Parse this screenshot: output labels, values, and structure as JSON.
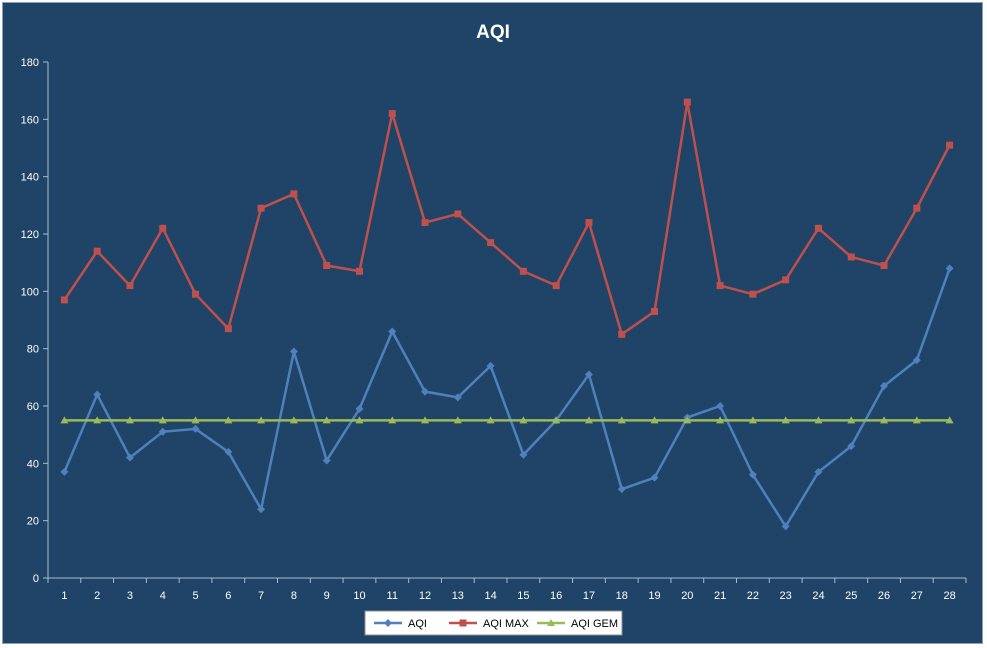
{
  "chart_data": {
    "type": "line",
    "title": "AQI",
    "xlabel": "",
    "ylabel": "",
    "categories": [
      "1",
      "2",
      "3",
      "4",
      "5",
      "6",
      "7",
      "8",
      "9",
      "10",
      "11",
      "12",
      "13",
      "14",
      "15",
      "16",
      "17",
      "18",
      "19",
      "20",
      "21",
      "22",
      "23",
      "24",
      "25",
      "26",
      "27",
      "28"
    ],
    "ylim": [
      0,
      180
    ],
    "yticks": [
      0,
      20,
      40,
      60,
      80,
      100,
      120,
      140,
      160,
      180
    ],
    "grid": false,
    "legend_position": "bottom",
    "series": [
      {
        "name": "AQI",
        "color": "#4f81bd",
        "marker": "diamond",
        "values": [
          37,
          64,
          42,
          51,
          52,
          44,
          24,
          79,
          41,
          59,
          86,
          65,
          63,
          74,
          43,
          55,
          71,
          31,
          35,
          56,
          60,
          36,
          18,
          37,
          46,
          67,
          76,
          108
        ]
      },
      {
        "name": "AQI MAX",
        "color": "#c0504d",
        "marker": "square",
        "values": [
          97,
          114,
          102,
          122,
          99,
          87,
          129,
          134,
          109,
          107,
          162,
          124,
          127,
          117,
          107,
          102,
          124,
          85,
          93,
          166,
          102,
          99,
          104,
          122,
          112,
          109,
          129,
          151
        ]
      },
      {
        "name": "AQI GEM",
        "color": "#9bbb59",
        "marker": "triangle",
        "values": [
          55,
          55,
          55,
          55,
          55,
          55,
          55,
          55,
          55,
          55,
          55,
          55,
          55,
          55,
          55,
          55,
          55,
          55,
          55,
          55,
          55,
          55,
          55,
          55,
          55,
          55,
          55,
          55
        ]
      }
    ]
  }
}
